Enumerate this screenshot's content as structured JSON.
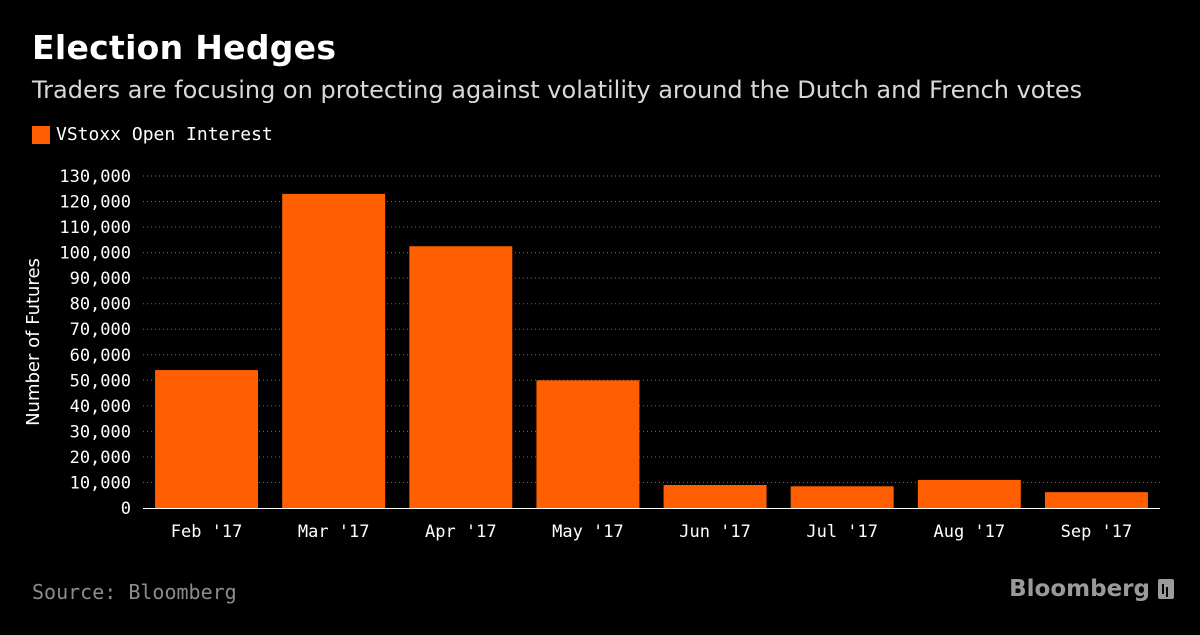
{
  "header": {
    "title": "Election Hedges",
    "subtitle": "Traders are focusing on protecting against volatility around the Dutch and French votes"
  },
  "footer": {
    "source": "Source: Bloomberg",
    "brand": "Bloomberg",
    "brand_icon": "bloomberg-terminal-icon"
  },
  "colors": {
    "background": "#000000",
    "bar": "#ff5f00",
    "grid": "#6e6e6e"
  },
  "chart_data": {
    "type": "bar",
    "title": "Election Hedges",
    "subtitle": "Traders are focusing on protecting against volatility around the Dutch and French votes",
    "xlabel": "",
    "ylabel": "Number of Futures",
    "categories": [
      "Feb '17",
      "Mar '17",
      "Apr '17",
      "May '17",
      "Jun '17",
      "Jul '17",
      "Aug '17",
      "Sep '17"
    ],
    "series": [
      {
        "name": "VStoxx Open Interest",
        "values": [
          54000,
          123000,
          102500,
          50000,
          9000,
          8500,
          11000,
          6200
        ]
      }
    ],
    "ylim": [
      0,
      130000
    ],
    "yticks": [
      0,
      10000,
      20000,
      30000,
      40000,
      50000,
      60000,
      70000,
      80000,
      90000,
      100000,
      110000,
      120000,
      130000
    ],
    "ytick_labels": [
      "0",
      "10,000",
      "20,000",
      "30,000",
      "40,000",
      "50,000",
      "60,000",
      "70,000",
      "80,000",
      "90,000",
      "100,000",
      "110,000",
      "120,000",
      "130,000"
    ],
    "grid": true,
    "legend_position": "top-left"
  }
}
